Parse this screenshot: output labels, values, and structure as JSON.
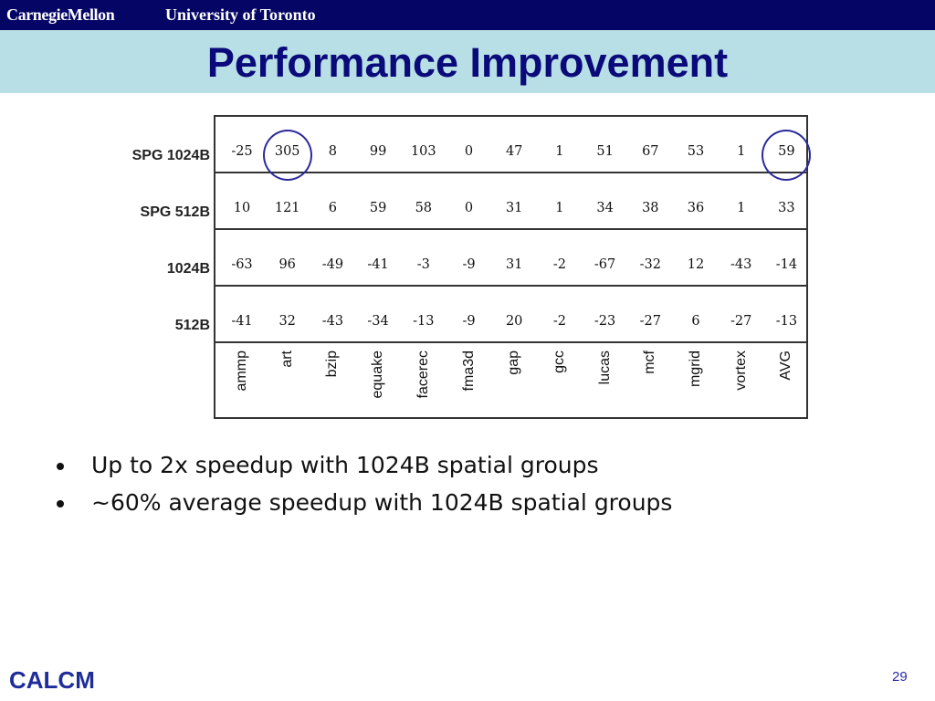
{
  "header": {
    "logo_left": "CarnegieMellon",
    "logo_right": "University of Toronto"
  },
  "title": "Performance Improvement",
  "chart_data": {
    "type": "table",
    "columns": [
      "ammp",
      "art",
      "bzip",
      "equake",
      "facerec",
      "fma3d",
      "gap",
      "gcc",
      "lucas",
      "mcf",
      "mgrid",
      "vortex",
      "AVG"
    ],
    "rows": [
      {
        "label": "SPG 1024B",
        "values": [
          "-25",
          "305",
          "8",
          "99",
          "103",
          "0",
          "47",
          "1",
          "51",
          "67",
          "53",
          "1",
          "59"
        ]
      },
      {
        "label": "SPG 512B",
        "values": [
          "10",
          "121",
          "6",
          "59",
          "58",
          "0",
          "31",
          "1",
          "34",
          "38",
          "36",
          "1",
          "33"
        ]
      },
      {
        "label": "1024B",
        "values": [
          "-63",
          "96",
          "-49",
          "-41",
          "-3",
          "-9",
          "31",
          "-2",
          "-67",
          "-32",
          "12",
          "-43",
          "-14"
        ]
      },
      {
        "label": "512B",
        "values": [
          "-41",
          "32",
          "-43",
          "-34",
          "-13",
          "-9",
          "20",
          "-2",
          "-23",
          "-27",
          "6",
          "-27",
          "-13"
        ]
      }
    ],
    "highlighted": [
      {
        "row": "SPG 1024B",
        "column": "art"
      },
      {
        "row": "SPG 1024B",
        "column": "AVG"
      }
    ]
  },
  "bullets": [
    "Up to 2x speedup with 1024B spatial groups",
    "~60% average speedup with 1024B spatial groups"
  ],
  "footer": {
    "brand": "CALCM",
    "page_number": "29"
  },
  "colors": {
    "header_bar": "#050566",
    "title_band": "#b9dfe6",
    "title_text": "#0a0a7a",
    "circle": "#2a2a9a"
  }
}
